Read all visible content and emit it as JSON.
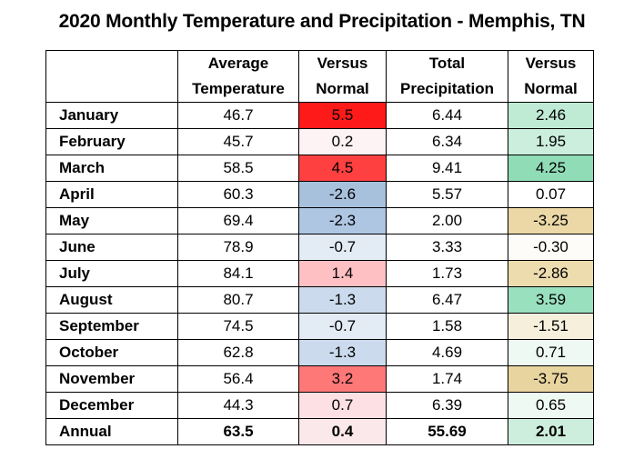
{
  "chart_data": {
    "type": "table",
    "title": "2020 Monthly Temperature and Precipitation - Memphis, TN",
    "columns": [
      "",
      "Average Temperature",
      "Versus Normal",
      "Total Precipitation",
      "Versus Normal"
    ],
    "rows": [
      {
        "month": "January",
        "avg_temp": "46.7",
        "temp_vs_normal": "5.5",
        "precip": "6.44",
        "precip_vs_normal": "2.46",
        "temp_color": "#ff1a1a",
        "precip_color": "#bfead4"
      },
      {
        "month": "February",
        "avg_temp": "45.7",
        "temp_vs_normal": "0.2",
        "precip": "6.34",
        "precip_vs_normal": "1.95",
        "temp_color": "#fdf2f4",
        "precip_color": "#cbeedd"
      },
      {
        "month": "March",
        "avg_temp": "58.5",
        "temp_vs_normal": "4.5",
        "precip": "9.41",
        "precip_vs_normal": "4.25",
        "temp_color": "#ff4040",
        "precip_color": "#8fdcb6"
      },
      {
        "month": "April",
        "avg_temp": "60.3",
        "temp_vs_normal": "-2.6",
        "precip": "5.57",
        "precip_vs_normal": "0.07",
        "temp_color": "#a7c1dd",
        "precip_color": "#ffffff"
      },
      {
        "month": "May",
        "avg_temp": "69.4",
        "temp_vs_normal": "-2.3",
        "precip": "2.00",
        "precip_vs_normal": "-3.25",
        "temp_color": "#aec6e2",
        "precip_color": "#ebd8a6"
      },
      {
        "month": "June",
        "avg_temp": "78.9",
        "temp_vs_normal": "-0.7",
        "precip": "3.33",
        "precip_vs_normal": "-0.30",
        "temp_color": "#e3ebf5",
        "precip_color": "#fdfcf8"
      },
      {
        "month": "July",
        "avg_temp": "84.1",
        "temp_vs_normal": "1.4",
        "precip": "1.73",
        "precip_vs_normal": "-2.86",
        "temp_color": "#ffc0c4",
        "precip_color": "#ecdcae"
      },
      {
        "month": "August",
        "avg_temp": "80.7",
        "temp_vs_normal": "-1.3",
        "precip": "6.47",
        "precip_vs_normal": "3.59",
        "temp_color": "#cbdbed",
        "precip_color": "#99e0bf"
      },
      {
        "month": "September",
        "avg_temp": "74.5",
        "temp_vs_normal": "-0.7",
        "precip": "1.58",
        "precip_vs_normal": "-1.51",
        "temp_color": "#e3ebf5",
        "precip_color": "#f5efdc"
      },
      {
        "month": "October",
        "avg_temp": "62.8",
        "temp_vs_normal": "-1.3",
        "precip": "4.69",
        "precip_vs_normal": "0.71",
        "temp_color": "#cbdbed",
        "precip_color": "#edf9f2"
      },
      {
        "month": "November",
        "avg_temp": "56.4",
        "temp_vs_normal": "3.2",
        "precip": "1.74",
        "precip_vs_normal": "-3.75",
        "temp_color": "#ff7878",
        "precip_color": "#e8d49f"
      },
      {
        "month": "December",
        "avg_temp": "44.3",
        "temp_vs_normal": "0.7",
        "precip": "6.39",
        "precip_vs_normal": "0.65",
        "temp_color": "#fde0e4",
        "precip_color": "#eff9f4"
      },
      {
        "month": "Annual",
        "avg_temp": "63.5",
        "temp_vs_normal": "0.4",
        "precip": "55.69",
        "precip_vs_normal": "2.01",
        "temp_color": "#fbe8ea",
        "precip_color": "#cdeedd"
      }
    ]
  }
}
